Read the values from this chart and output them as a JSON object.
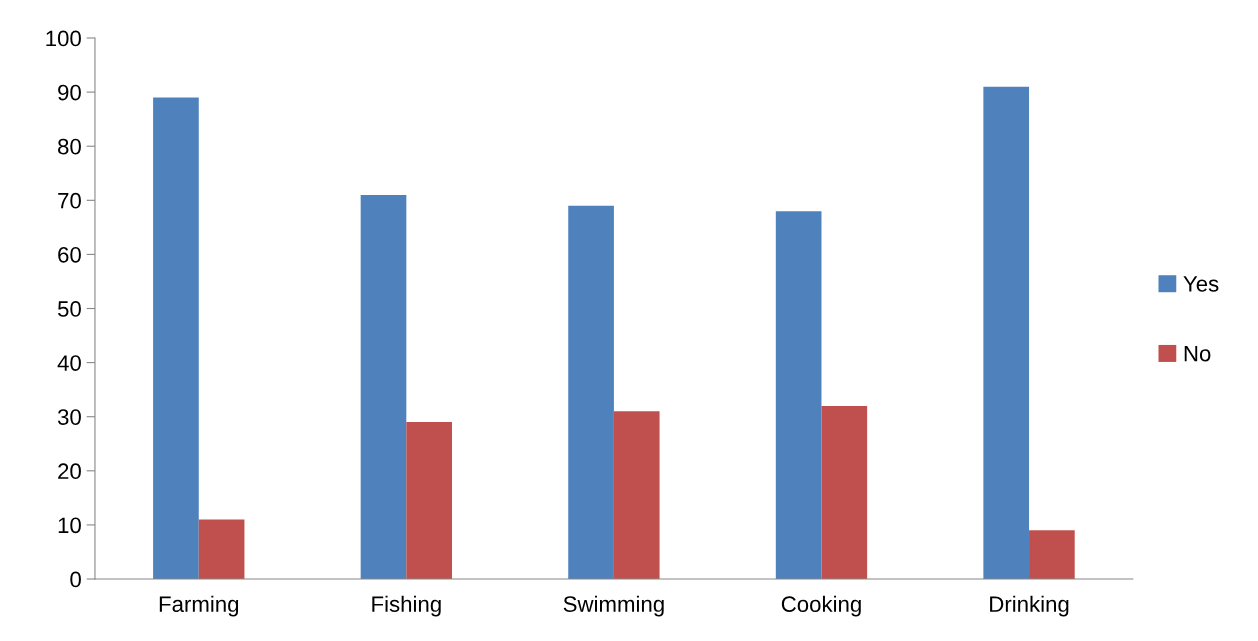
{
  "chart_data": {
    "type": "bar",
    "categories": [
      "Farming",
      "Fishing",
      "Swimming",
      "Cooking",
      "Drinking"
    ],
    "series": [
      {
        "name": "Yes",
        "color": "#4f81bd",
        "values": [
          89,
          71,
          69,
          68,
          91
        ]
      },
      {
        "name": "No",
        "color": "#c0504d",
        "values": [
          11,
          29,
          31,
          32,
          9
        ]
      }
    ],
    "ylim": [
      0,
      100
    ],
    "yticks": [
      0,
      10,
      20,
      30,
      40,
      50,
      60,
      70,
      80,
      90,
      100
    ],
    "grid": false,
    "legend": "right"
  }
}
